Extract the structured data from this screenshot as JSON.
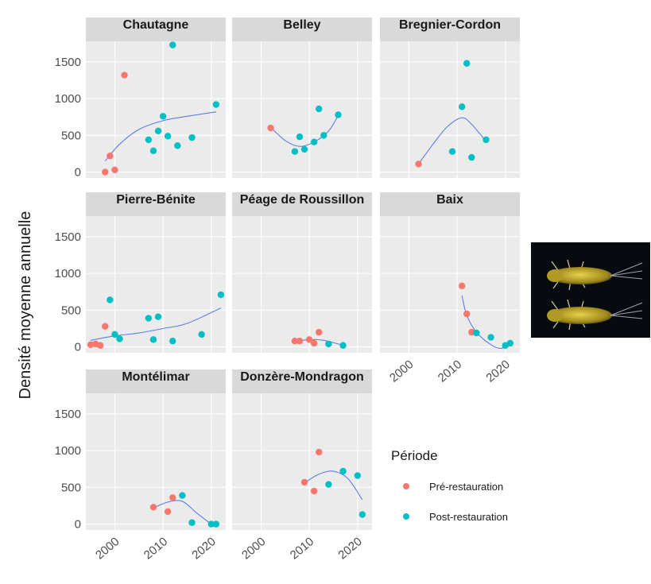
{
  "chart_data": {
    "type": "scatter",
    "ylabel": "Densité moyenne annuelle",
    "xlim": [
      1994,
      2023
    ],
    "ylim": [
      -80,
      1780
    ],
    "x_ticks": [
      2000,
      2010,
      2020
    ],
    "y_ticks": [
      0,
      500,
      1000,
      1500
    ],
    "legend": {
      "title": "Période",
      "position": "right",
      "entries": [
        {
          "label": "Pré-restauration",
          "color": "#F8766D"
        },
        {
          "label": "Post-restauration",
          "color": "#00BFC4"
        }
      ]
    },
    "colors": {
      "pre": "#F8766D",
      "post": "#00BFC4",
      "smooth": "#5B7FE3",
      "panel_bg": "#EBEBEB",
      "strip_bg": "#D9D9D9"
    },
    "photo": {
      "subject": "two yellow mayfly nymphs on dark background"
    },
    "panels": [
      {
        "name": "Chautagne",
        "pre": [
          [
            1998,
            0
          ],
          [
            1999,
            220
          ],
          [
            2000,
            30
          ],
          [
            2002,
            1320
          ]
        ],
        "post": [
          [
            2007,
            440
          ],
          [
            2008,
            290
          ],
          [
            2009,
            560
          ],
          [
            2010,
            760
          ],
          [
            2011,
            490
          ],
          [
            2012,
            1730
          ],
          [
            2013,
            360
          ],
          [
            2016,
            470
          ],
          [
            2021,
            920
          ]
        ],
        "smooth": [
          [
            1998,
            150
          ],
          [
            2001,
            380
          ],
          [
            2005,
            580
          ],
          [
            2010,
            700
          ],
          [
            2015,
            760
          ],
          [
            2021,
            820
          ]
        ]
      },
      {
        "name": "Belley",
        "pre": [
          [
            2002,
            600
          ]
        ],
        "post": [
          [
            2007,
            280
          ],
          [
            2008,
            480
          ],
          [
            2009,
            310
          ],
          [
            2011,
            410
          ],
          [
            2012,
            860
          ],
          [
            2013,
            500
          ],
          [
            2016,
            780
          ]
        ],
        "smooth": [
          [
            2002,
            610
          ],
          [
            2005,
            430
          ],
          [
            2008,
            350
          ],
          [
            2011,
            410
          ],
          [
            2014,
            560
          ],
          [
            2016,
            770
          ]
        ]
      },
      {
        "name": "Bregnier-Cordon",
        "pre": [
          [
            2002,
            110
          ]
        ],
        "post": [
          [
            2009,
            280
          ],
          [
            2011,
            890
          ],
          [
            2012,
            1480
          ],
          [
            2013,
            200
          ],
          [
            2016,
            440
          ]
        ],
        "smooth": [
          [
            2002,
            110
          ],
          [
            2005,
            380
          ],
          [
            2008,
            620
          ],
          [
            2011,
            740
          ],
          [
            2013,
            650
          ],
          [
            2016,
            420
          ]
        ]
      },
      {
        "name": "Pierre-Bénite",
        "pre": [
          [
            1995,
            30
          ],
          [
            1996,
            40
          ],
          [
            1997,
            20
          ],
          [
            1998,
            280
          ]
        ],
        "post": [
          [
            1999,
            640
          ],
          [
            2000,
            170
          ],
          [
            2001,
            110
          ],
          [
            2007,
            390
          ],
          [
            2008,
            100
          ],
          [
            2009,
            410
          ],
          [
            2012,
            80
          ],
          [
            2018,
            170
          ],
          [
            2022,
            710
          ]
        ],
        "smooth": [
          [
            1995,
            90
          ],
          [
            2000,
            150
          ],
          [
            2005,
            190
          ],
          [
            2010,
            250
          ],
          [
            2015,
            320
          ],
          [
            2022,
            530
          ]
        ]
      },
      {
        "name": "Péage de Roussillon",
        "pre": [
          [
            2007,
            80
          ],
          [
            2008,
            80
          ],
          [
            2010,
            100
          ],
          [
            2011,
            50
          ],
          [
            2012,
            200
          ]
        ],
        "post": [
          [
            2014,
            40
          ],
          [
            2017,
            20
          ]
        ],
        "smooth": [
          [
            2007,
            70
          ],
          [
            2010,
            100
          ],
          [
            2013,
            90
          ],
          [
            2016,
            40
          ],
          [
            2017,
            20
          ]
        ]
      },
      {
        "name": "Baix",
        "pre": [
          [
            2011,
            830
          ],
          [
            2012,
            450
          ],
          [
            2013,
            200
          ]
        ],
        "post": [
          [
            2014,
            190
          ],
          [
            2017,
            130
          ],
          [
            2020,
            20
          ],
          [
            2021,
            50
          ]
        ],
        "smooth": [
          [
            2011,
            700
          ],
          [
            2012,
            430
          ],
          [
            2014,
            200
          ],
          [
            2017,
            30
          ],
          [
            2019,
            -20
          ],
          [
            2021,
            30
          ]
        ]
      },
      {
        "name": "Montélimar",
        "pre": [
          [
            2008,
            230
          ],
          [
            2011,
            170
          ],
          [
            2012,
            360
          ]
        ],
        "post": [
          [
            2014,
            390
          ],
          [
            2016,
            20
          ],
          [
            2020,
            0
          ],
          [
            2021,
            0
          ]
        ],
        "smooth": [
          [
            2008,
            220
          ],
          [
            2011,
            300
          ],
          [
            2014,
            310
          ],
          [
            2017,
            150
          ],
          [
            2020,
            0
          ],
          [
            2021,
            -40
          ]
        ]
      },
      {
        "name": "Donzère-Mondragon",
        "pre": [
          [
            2009,
            570
          ],
          [
            2011,
            450
          ],
          [
            2012,
            980
          ]
        ],
        "post": [
          [
            2014,
            540
          ],
          [
            2017,
            720
          ],
          [
            2020,
            660
          ],
          [
            2021,
            130
          ]
        ],
        "smooth": [
          [
            2009,
            560
          ],
          [
            2012,
            680
          ],
          [
            2015,
            720
          ],
          [
            2018,
            620
          ],
          [
            2021,
            330
          ]
        ]
      }
    ]
  }
}
